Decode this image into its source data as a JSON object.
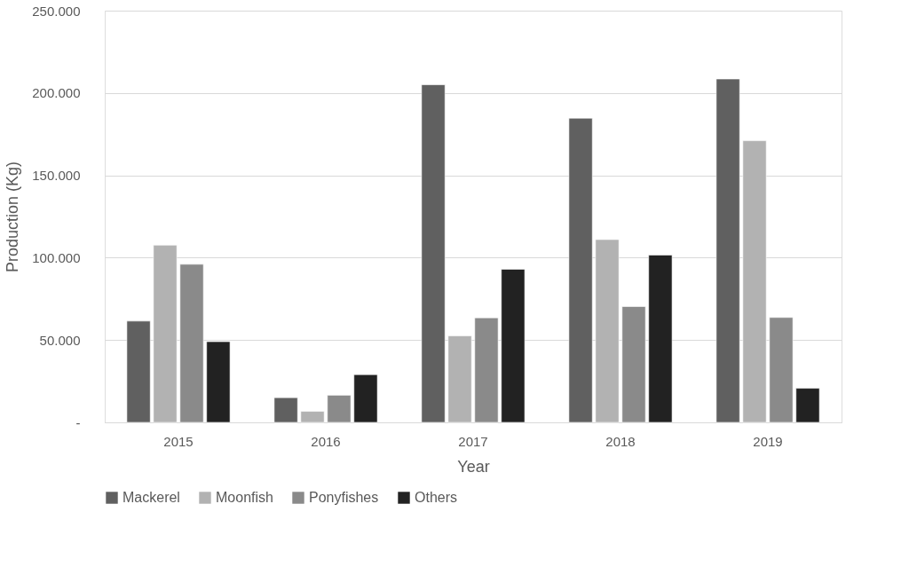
{
  "chart_data": {
    "type": "bar",
    "xlabel": "Year",
    "ylabel": "Production (Kg)",
    "categories": [
      "2015",
      "2016",
      "2017",
      "2018",
      "2019"
    ],
    "series": [
      {
        "name": "Mackerel",
        "color": "#606060",
        "values": [
          61500,
          15000,
          205000,
          184700,
          208500
        ]
      },
      {
        "name": "Moonfish",
        "color": "#b2b2b2",
        "values": [
          107600,
          6700,
          52500,
          111000,
          171000
        ]
      },
      {
        "name": "Ponyfishes",
        "color": "#8a8a8a",
        "values": [
          96000,
          16500,
          63500,
          70300,
          63700
        ]
      },
      {
        "name": "Others",
        "color": "#222222",
        "values": [
          49000,
          29000,
          93000,
          101600,
          20700
        ]
      }
    ],
    "ylim": [
      0,
      250000
    ],
    "yticks": [
      {
        "value": 0,
        "label": "-"
      },
      {
        "value": 50000,
        "label": "50.000"
      },
      {
        "value": 100000,
        "label": "100.000"
      },
      {
        "value": 150000,
        "label": "150.000"
      },
      {
        "value": 200000,
        "label": "200.000"
      },
      {
        "value": 250000,
        "label": "250.000"
      }
    ],
    "grid": "y",
    "legend": "bottom"
  }
}
